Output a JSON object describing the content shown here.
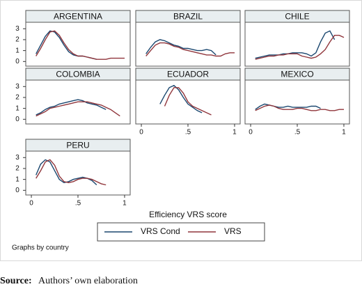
{
  "chart_data": [
    {
      "type": "line",
      "title": "ARGENTINA",
      "x": [
        0.05,
        0.1,
        0.15,
        0.2,
        0.25,
        0.3,
        0.35,
        0.4,
        0.45,
        0.5,
        0.55,
        0.6,
        0.65,
        0.7,
        0.75,
        0.8,
        0.85,
        0.9,
        0.95,
        1.0
      ],
      "series": [
        {
          "name": "VRS Cond",
          "color": "#1a476f",
          "values": [
            0.7,
            1.5,
            2.3,
            2.8,
            2.7,
            2.2,
            1.5,
            0.9,
            0.6,
            0.5,
            0.5,
            0.4,
            0.3,
            0.2,
            null,
            null,
            null,
            null,
            null,
            null
          ]
        },
        {
          "name": "VRS",
          "color": "#90353b",
          "values": [
            0.5,
            1.2,
            2.0,
            2.7,
            2.8,
            2.4,
            1.7,
            1.1,
            0.7,
            0.5,
            0.5,
            0.4,
            0.3,
            0.2,
            0.2,
            0.2,
            0.3,
            0.3,
            0.3,
            0.3
          ]
        }
      ],
      "xlim": [
        -0.06,
        1.06
      ],
      "ylim": [
        -0.3,
        3.4
      ],
      "yticks": [
        0,
        1,
        2,
        3
      ]
    },
    {
      "type": "line",
      "title": "BRAZIL",
      "x": [
        0.05,
        0.1,
        0.15,
        0.2,
        0.25,
        0.3,
        0.35,
        0.4,
        0.45,
        0.5,
        0.55,
        0.6,
        0.65,
        0.7,
        0.75,
        0.8,
        0.85,
        0.9,
        0.95,
        1.0
      ],
      "series": [
        {
          "name": "VRS Cond",
          "color": "#1a476f",
          "values": [
            0.7,
            1.3,
            1.8,
            2.0,
            1.9,
            1.7,
            1.5,
            1.4,
            1.2,
            1.2,
            1.1,
            1.0,
            1.0,
            1.1,
            1.0,
            0.6,
            null,
            null,
            null,
            null
          ]
        },
        {
          "name": "VRS",
          "color": "#90353b",
          "values": [
            0.5,
            1.0,
            1.5,
            1.7,
            1.7,
            1.6,
            1.4,
            1.3,
            1.1,
            1.0,
            0.9,
            0.8,
            0.7,
            0.6,
            0.6,
            0.5,
            0.5,
            0.7,
            0.8,
            0.8
          ]
        }
      ],
      "xlim": [
        -0.06,
        1.06
      ],
      "ylim": [
        -0.3,
        3.4
      ]
    },
    {
      "type": "line",
      "title": "CHILE",
      "x": [
        0.05,
        0.1,
        0.15,
        0.2,
        0.25,
        0.3,
        0.35,
        0.4,
        0.45,
        0.5,
        0.55,
        0.6,
        0.65,
        0.7,
        0.75,
        0.8,
        0.85,
        0.9,
        0.95,
        1.0
      ],
      "series": [
        {
          "name": "VRS Cond",
          "color": "#1a476f",
          "values": [
            0.3,
            0.4,
            0.5,
            0.6,
            0.6,
            0.6,
            0.7,
            0.7,
            0.8,
            0.8,
            0.8,
            0.7,
            0.5,
            0.8,
            1.8,
            2.6,
            2.8,
            2.0,
            null,
            null
          ]
        },
        {
          "name": "VRS",
          "color": "#90353b",
          "values": [
            0.2,
            0.3,
            0.4,
            0.5,
            0.5,
            0.6,
            0.6,
            0.7,
            0.7,
            0.7,
            0.5,
            0.4,
            0.3,
            0.4,
            0.7,
            1.1,
            1.8,
            2.4,
            2.4,
            2.2
          ]
        }
      ],
      "xlim": [
        -0.06,
        1.06
      ],
      "ylim": [
        -0.3,
        3.4
      ]
    },
    {
      "type": "line",
      "title": "COLOMBIA",
      "x": [
        0.05,
        0.1,
        0.15,
        0.2,
        0.25,
        0.3,
        0.35,
        0.4,
        0.45,
        0.5,
        0.55,
        0.6,
        0.65,
        0.7,
        0.75,
        0.8,
        0.85,
        0.9,
        0.95,
        1.0
      ],
      "series": [
        {
          "name": "VRS Cond",
          "color": "#1a476f",
          "values": [
            0.4,
            0.6,
            0.9,
            1.1,
            1.2,
            1.4,
            1.5,
            1.6,
            1.7,
            1.8,
            1.7,
            1.5,
            1.4,
            1.3,
            1.1,
            0.9,
            null,
            null,
            null,
            null
          ]
        },
        {
          "name": "VRS",
          "color": "#90353b",
          "values": [
            0.3,
            0.5,
            0.7,
            1.0,
            1.1,
            1.2,
            1.3,
            1.4,
            1.5,
            1.6,
            1.6,
            1.6,
            1.5,
            1.4,
            1.3,
            1.1,
            0.9,
            0.6,
            0.3,
            null
          ]
        }
      ],
      "xlim": [
        -0.06,
        1.06
      ],
      "ylim": [
        -0.3,
        3.4
      ],
      "yticks": [
        0,
        1,
        2,
        3
      ]
    },
    {
      "type": "line",
      "title": "ECUADOR",
      "x": [
        0.05,
        0.1,
        0.15,
        0.2,
        0.25,
        0.3,
        0.35,
        0.4,
        0.45,
        0.5,
        0.55,
        0.6,
        0.65,
        0.7,
        0.75,
        0.8,
        0.85,
        0.9,
        0.95,
        1.0
      ],
      "series": [
        {
          "name": "VRS Cond",
          "color": "#1a476f",
          "values": [
            null,
            null,
            null,
            1.4,
            2.2,
            2.9,
            3.1,
            2.7,
            2.0,
            1.4,
            1.1,
            0.8,
            0.6,
            null,
            null,
            null,
            null,
            null,
            null,
            null
          ]
        },
        {
          "name": "VRS",
          "color": "#90353b",
          "values": [
            null,
            null,
            null,
            null,
            1.2,
            2.2,
            2.9,
            2.9,
            2.4,
            1.6,
            1.2,
            1.0,
            0.8,
            0.6,
            0.4,
            null,
            null,
            null,
            null,
            null
          ]
        }
      ],
      "xlim": [
        -0.06,
        1.06
      ],
      "ylim": [
        -0.3,
        3.4
      ],
      "xticks": [
        0,
        {
          "value": 0.5,
          "label": ".5"
        },
        1
      ]
    },
    {
      "type": "line",
      "title": "MEXICO",
      "x": [
        0.05,
        0.1,
        0.15,
        0.2,
        0.25,
        0.3,
        0.35,
        0.4,
        0.45,
        0.5,
        0.55,
        0.6,
        0.65,
        0.7,
        0.75,
        0.8,
        0.85,
        0.9,
        0.95,
        1.0
      ],
      "series": [
        {
          "name": "VRS Cond",
          "color": "#1a476f",
          "values": [
            0.9,
            1.2,
            1.4,
            1.3,
            1.2,
            1.1,
            1.1,
            1.2,
            1.1,
            1.1,
            1.1,
            1.1,
            1.2,
            1.2,
            1.0,
            null,
            null,
            null,
            null,
            null
          ]
        },
        {
          "name": "VRS",
          "color": "#90353b",
          "values": [
            0.8,
            1.0,
            1.2,
            1.3,
            1.2,
            1.0,
            0.9,
            0.9,
            0.9,
            1.0,
            1.0,
            0.9,
            0.8,
            0.8,
            0.9,
            0.9,
            0.8,
            0.8,
            0.9,
            0.9
          ]
        }
      ],
      "xlim": [
        -0.06,
        1.06
      ],
      "ylim": [
        -0.3,
        3.4
      ],
      "xticks": [
        0,
        {
          "value": 0.5,
          "label": ".5"
        },
        1
      ]
    },
    {
      "type": "line",
      "title": "PERU",
      "x": [
        0.05,
        0.1,
        0.15,
        0.2,
        0.25,
        0.3,
        0.35,
        0.4,
        0.45,
        0.5,
        0.55,
        0.6,
        0.65,
        0.7,
        0.75,
        0.8,
        0.85,
        0.9,
        0.95,
        1.0
      ],
      "series": [
        {
          "name": "VRS Cond",
          "color": "#1a476f",
          "values": [
            1.4,
            2.4,
            2.8,
            2.6,
            1.8,
            1.0,
            0.7,
            0.8,
            1.0,
            1.1,
            1.2,
            1.1,
            0.9,
            0.5,
            null,
            null,
            null,
            null,
            null,
            null
          ]
        },
        {
          "name": "VRS",
          "color": "#90353b",
          "values": [
            1.1,
            1.8,
            2.6,
            2.8,
            2.3,
            1.3,
            0.8,
            0.7,
            0.8,
            1.0,
            1.1,
            1.1,
            1.0,
            0.8,
            0.6,
            0.5,
            null,
            null,
            null,
            null
          ]
        }
      ],
      "xlim": [
        -0.06,
        1.06
      ],
      "ylim": [
        -0.3,
        3.4
      ],
      "yticks": [
        0,
        1,
        2,
        3
      ],
      "xticks": [
        0,
        {
          "value": 0.5,
          "label": ".5"
        },
        1
      ]
    }
  ],
  "x_label": "Efficiency VRS score",
  "note": "Graphs by country",
  "source": {
    "label": "Source:",
    "text": "Authors’ own elaboration"
  }
}
